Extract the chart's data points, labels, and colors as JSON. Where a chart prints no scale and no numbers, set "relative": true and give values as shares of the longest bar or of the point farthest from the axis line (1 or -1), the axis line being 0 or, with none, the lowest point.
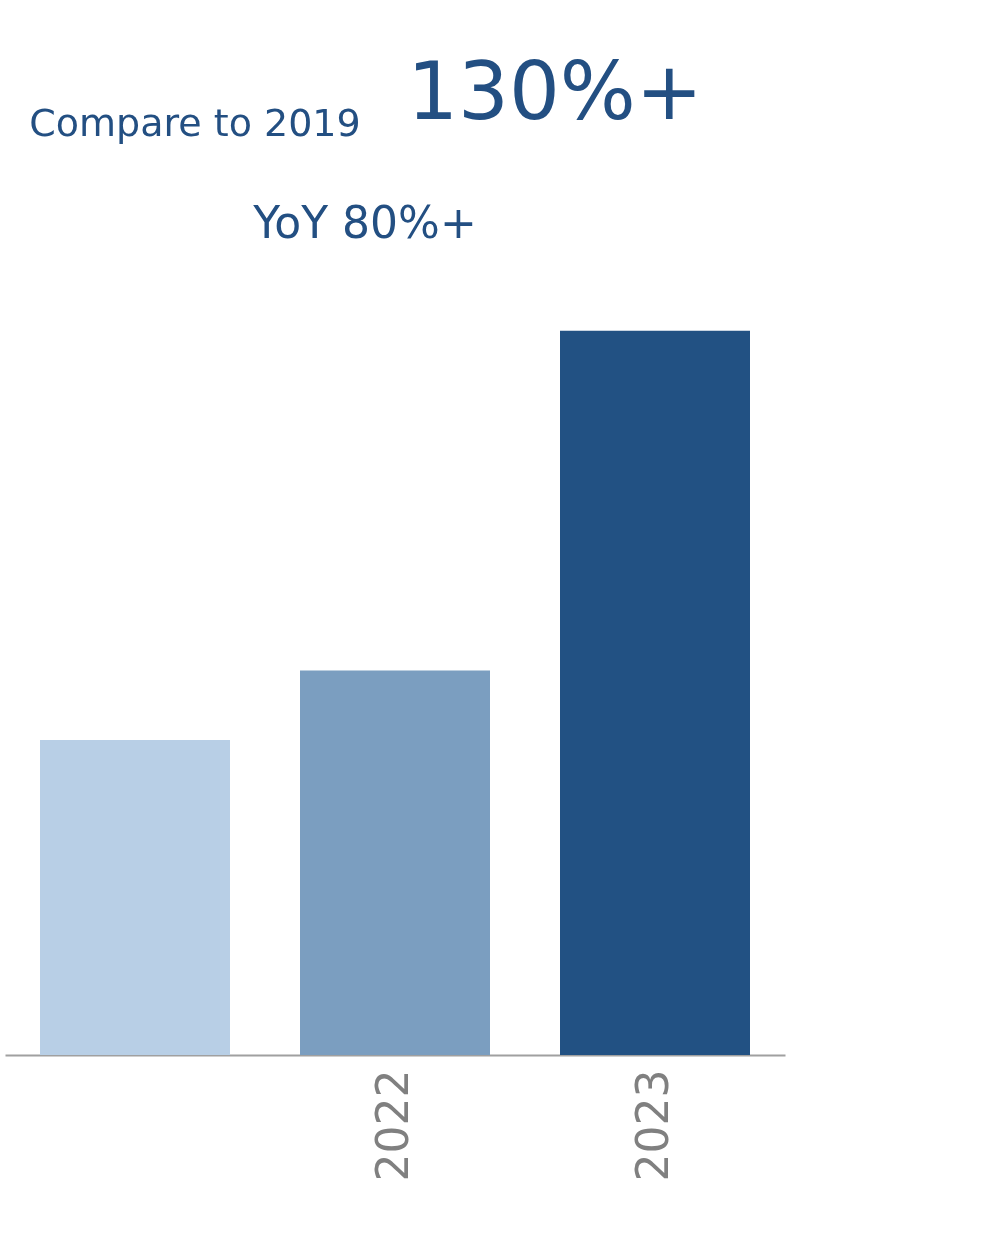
{
  "chart_data": {
    "type": "bar",
    "relative": true,
    "categories": [
      null,
      "2022",
      "2023"
    ],
    "values": [
      0.435,
      0.531,
      1
    ],
    "colors": [
      "#b8cfe6",
      "#7b9ec0",
      "#225183"
    ],
    "annotations": [
      "Compare to 2019",
      "130%+",
      "YoY 80%+"
    ],
    "grid": false
  }
}
